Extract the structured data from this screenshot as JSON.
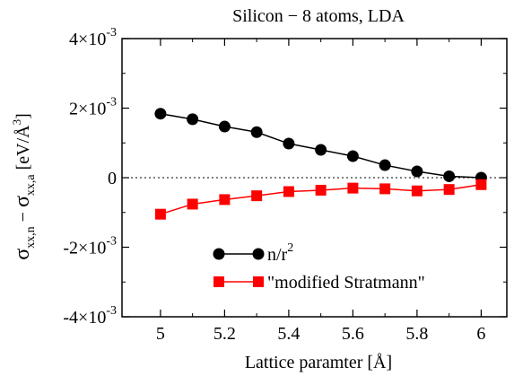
{
  "chart_data": {
    "type": "line",
    "title": "Silicon − 8 atoms, LDA",
    "xlabel": "Lattice paramter [Å]",
    "ylabel": {
      "sigma": "σ",
      "sub1": "xx,n",
      "minus": " − ",
      "sub2": "xx,a",
      "units_open": " [eV/",
      "angstrom": "Å",
      "exponent": "3",
      "units_close": "]"
    },
    "xlim": [
      4.88,
      6.08
    ],
    "ylim": [
      -0.004,
      0.004
    ],
    "xticks": [
      {
        "value": 5.0,
        "label": "5"
      },
      {
        "value": 5.2,
        "label": "5.2"
      },
      {
        "value": 5.4,
        "label": "5.4"
      },
      {
        "value": 5.6,
        "label": "5.6"
      },
      {
        "value": 5.8,
        "label": "5.8"
      },
      {
        "value": 6.0,
        "label": "6"
      }
    ],
    "yticks": [
      {
        "value": 0.004,
        "mantissa": "4×10",
        "exp": "-3"
      },
      {
        "value": 0.002,
        "mantissa": "2×10",
        "exp": "-3"
      },
      {
        "value": 0.0,
        "mantissa": "0",
        "exp": ""
      },
      {
        "value": -0.002,
        "mantissa": "-2×10",
        "exp": "-3"
      },
      {
        "value": -0.004,
        "mantissa": "-4×10",
        "exp": "-3"
      }
    ],
    "zero_line": true,
    "legend_position": "bottom-center",
    "series": [
      {
        "name_base": "n/r",
        "name_sup": "2",
        "marker": "circle",
        "color": "#000000",
        "x": [
          5.0,
          5.1,
          5.2,
          5.3,
          5.4,
          5.5,
          5.6,
          5.7,
          5.8,
          5.9,
          6.0
        ],
        "y": [
          0.00184,
          0.00168,
          0.00147,
          0.00131,
          0.00098,
          0.0008,
          0.00062,
          0.00036,
          0.00018,
          4e-05,
          0.0
        ]
      },
      {
        "name_base": "\"modified Stratmann\"",
        "name_sup": "",
        "marker": "square",
        "color": "#ff0000",
        "x": [
          5.0,
          5.1,
          5.2,
          5.3,
          5.4,
          5.5,
          5.6,
          5.7,
          5.8,
          5.9,
          6.0
        ],
        "y": [
          -0.00105,
          -0.00076,
          -0.00063,
          -0.00052,
          -0.0004,
          -0.00036,
          -0.0003,
          -0.00032,
          -0.00038,
          -0.00034,
          -0.0002
        ]
      }
    ]
  }
}
